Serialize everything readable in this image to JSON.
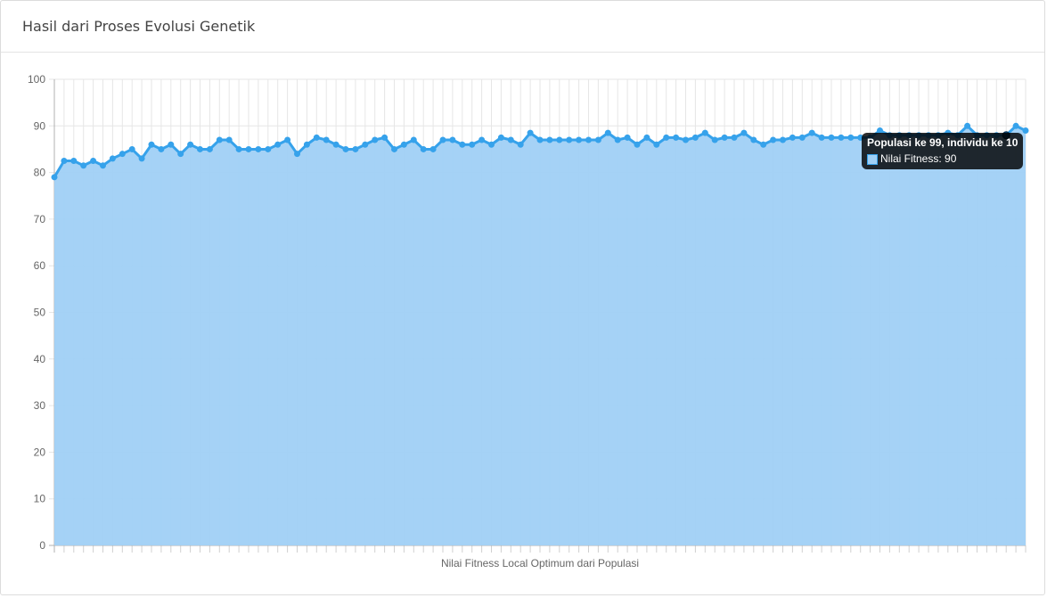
{
  "card": {
    "title": "Hasil dari Proses Evolusi Genetik"
  },
  "tooltip": {
    "title": "Populasi ke 99, individu ke 10",
    "label": "Nilai Fitness: 90"
  },
  "colors": {
    "line": "#36a2eb",
    "fill": "#a0d0f5",
    "grid": "#e6e6e6",
    "tooltip_bg": "#000000"
  },
  "chart_data": {
    "type": "area",
    "title": "",
    "xlabel": "Nilai Fitness Local Optimum dari Populasi",
    "ylabel": "",
    "ylim": [
      0,
      100
    ],
    "yticks": [
      0,
      10,
      20,
      30,
      40,
      50,
      60,
      70,
      80,
      90,
      100
    ],
    "grid": true,
    "legend": "none",
    "series": [
      {
        "name": "Nilai Fitness",
        "values": [
          79,
          82.5,
          82.5,
          81.5,
          82.5,
          81.5,
          83,
          84,
          85,
          83,
          86,
          85,
          86,
          84,
          86,
          85,
          85,
          87,
          87,
          85,
          85,
          85,
          85,
          86,
          87,
          84,
          86,
          87.5,
          87,
          86,
          85,
          85,
          86,
          87,
          87.5,
          85,
          86,
          87,
          85,
          85,
          87,
          87,
          86,
          86,
          87,
          86,
          87.5,
          87,
          86,
          88.5,
          87,
          87,
          87,
          87,
          87,
          87,
          87,
          88.5,
          87,
          87.5,
          86,
          87.5,
          86,
          87.5,
          87.5,
          87,
          87.5,
          88.5,
          87,
          87.5,
          87.5,
          88.5,
          87,
          86,
          87,
          87,
          87.5,
          87.5,
          88.5,
          87.5,
          87.5,
          87.5,
          87.5,
          87.5,
          87.5,
          89,
          88,
          88,
          88,
          88,
          88,
          88,
          88.5,
          88,
          90,
          88,
          88,
          88,
          88,
          90,
          89
        ]
      }
    ]
  }
}
